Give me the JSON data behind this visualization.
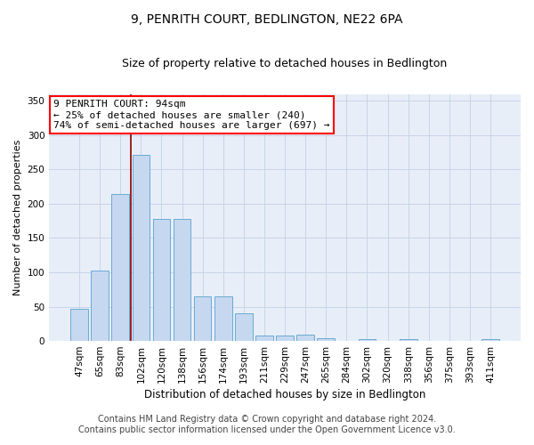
{
  "title": "9, PENRITH COURT, BEDLINGTON, NE22 6PA",
  "subtitle": "Size of property relative to detached houses in Bedlington",
  "xlabel": "Distribution of detached houses by size in Bedlington",
  "ylabel": "Number of detached properties",
  "categories": [
    "47sqm",
    "65sqm",
    "83sqm",
    "102sqm",
    "120sqm",
    "138sqm",
    "156sqm",
    "174sqm",
    "193sqm",
    "211sqm",
    "229sqm",
    "247sqm",
    "265sqm",
    "284sqm",
    "302sqm",
    "320sqm",
    "338sqm",
    "356sqm",
    "375sqm",
    "393sqm",
    "411sqm"
  ],
  "values": [
    47,
    102,
    214,
    271,
    178,
    178,
    65,
    65,
    40,
    8,
    8,
    9,
    4,
    0,
    3,
    0,
    3,
    0,
    0,
    0,
    3
  ],
  "bar_color": "#c5d8f0",
  "bar_edge_color": "#6aaad4",
  "red_line_x": 2.5,
  "annotation_line1": "9 PENRITH COURT: 94sqm",
  "annotation_line2": "← 25% of detached houses are smaller (240)",
  "annotation_line3": "74% of semi-detached houses are larger (697) →",
  "annotation_box_color": "white",
  "annotation_box_edge": "red",
  "ylim": [
    0,
    360
  ],
  "yticks": [
    0,
    50,
    100,
    150,
    200,
    250,
    300,
    350
  ],
  "footer_line1": "Contains HM Land Registry data © Crown copyright and database right 2024.",
  "footer_line2": "Contains public sector information licensed under the Open Government Licence v3.0.",
  "bg_color": "#e8eef8",
  "grid_color": "#c8d4e8",
  "title_fontsize": 10,
  "subtitle_fontsize": 9,
  "xlabel_fontsize": 8.5,
  "ylabel_fontsize": 8,
  "tick_fontsize": 7.5,
  "annotation_fontsize": 8,
  "footer_fontsize": 7
}
